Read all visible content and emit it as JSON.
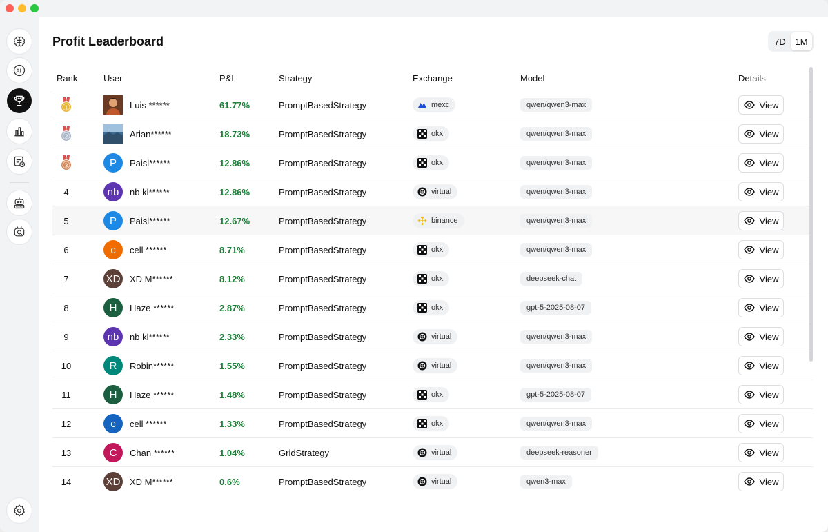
{
  "page": {
    "title": "Profit Leaderboard",
    "ranges": [
      {
        "label": "7D",
        "selected": false
      },
      {
        "label": "1M",
        "selected": true
      }
    ]
  },
  "sidebar": {
    "items": [
      {
        "name": "brain-icon",
        "active": false
      },
      {
        "name": "ai-icon",
        "active": false
      },
      {
        "name": "trophy-icon",
        "active": true
      },
      {
        "name": "bar-chart-icon",
        "active": false
      },
      {
        "name": "calendar-clock-icon",
        "active": false
      },
      {
        "name": "robot-news-icon",
        "active": false
      },
      {
        "name": "robot-search-icon",
        "active": false
      }
    ],
    "settings_icon": "gear-icon"
  },
  "table": {
    "headers": {
      "rank": "Rank",
      "user": "User",
      "pnl": "P&L",
      "strategy": "Strategy",
      "exchange": "Exchange",
      "model": "Model",
      "details": "Details"
    },
    "view_label": "View",
    "rows": [
      {
        "rank": "",
        "medal": "gold",
        "medal_num": "1",
        "avatar_type": "photo-man",
        "avatar_initials": "",
        "avatar_color": "#b05a2a",
        "user": "Luis ******",
        "pnl": "61.77%",
        "strategy": "PromptBasedStrategy",
        "exchange": "mexc",
        "model": "qwen/qwen3-max"
      },
      {
        "rank": "",
        "medal": "silver",
        "medal_num": "2",
        "avatar_type": "photo-landscape",
        "avatar_initials": "",
        "avatar_color": "#5f88b0",
        "user": "Arian******",
        "pnl": "18.73%",
        "strategy": "PromptBasedStrategy",
        "exchange": "okx",
        "model": "qwen/qwen3-max"
      },
      {
        "rank": "",
        "medal": "bronze",
        "medal_num": "3",
        "avatar_type": "letter",
        "avatar_initials": "P",
        "avatar_color": "#1e88e5",
        "user": "Paisl******",
        "pnl": "12.86%",
        "strategy": "PromptBasedStrategy",
        "exchange": "okx",
        "model": "qwen/qwen3-max"
      },
      {
        "rank": "4",
        "medal": "",
        "medal_num": "",
        "avatar_type": "letter",
        "avatar_initials": "nb",
        "avatar_color": "#5e35b1",
        "user": "nb kl******",
        "pnl": "12.86%",
        "strategy": "PromptBasedStrategy",
        "exchange": "virtual",
        "model": "qwen/qwen3-max"
      },
      {
        "rank": "5",
        "medal": "",
        "medal_num": "",
        "avatar_type": "letter",
        "avatar_initials": "P",
        "avatar_color": "#1e88e5",
        "user": "Paisl******",
        "pnl": "12.67%",
        "strategy": "PromptBasedStrategy",
        "exchange": "binance",
        "model": "qwen/qwen3-max",
        "highlight": true
      },
      {
        "rank": "6",
        "medal": "",
        "medal_num": "",
        "avatar_type": "letter",
        "avatar_initials": "c",
        "avatar_color": "#ef6c00",
        "user": "cell ******",
        "pnl": "8.71%",
        "strategy": "PromptBasedStrategy",
        "exchange": "okx",
        "model": "qwen/qwen3-max"
      },
      {
        "rank": "7",
        "medal": "",
        "medal_num": "",
        "avatar_type": "letter",
        "avatar_initials": "XD",
        "avatar_color": "#5d4037",
        "user": "XD M******",
        "pnl": "8.12%",
        "strategy": "PromptBasedStrategy",
        "exchange": "okx",
        "model": "deepseek-chat"
      },
      {
        "rank": "8",
        "medal": "",
        "medal_num": "",
        "avatar_type": "letter",
        "avatar_initials": "H",
        "avatar_color": "#1b5e40",
        "user": "Haze ******",
        "pnl": "2.87%",
        "strategy": "PromptBasedStrategy",
        "exchange": "okx",
        "model": "gpt-5-2025-08-07"
      },
      {
        "rank": "9",
        "medal": "",
        "medal_num": "",
        "avatar_type": "letter",
        "avatar_initials": "nb",
        "avatar_color": "#5e35b1",
        "user": "nb kl******",
        "pnl": "2.33%",
        "strategy": "PromptBasedStrategy",
        "exchange": "virtual",
        "model": "qwen/qwen3-max"
      },
      {
        "rank": "10",
        "medal": "",
        "medal_num": "",
        "avatar_type": "letter",
        "avatar_initials": "R",
        "avatar_color": "#00897b",
        "user": "Robin******",
        "pnl": "1.55%",
        "strategy": "PromptBasedStrategy",
        "exchange": "virtual",
        "model": "qwen/qwen3-max"
      },
      {
        "rank": "11",
        "medal": "",
        "medal_num": "",
        "avatar_type": "letter",
        "avatar_initials": "H",
        "avatar_color": "#1b5e40",
        "user": "Haze ******",
        "pnl": "1.48%",
        "strategy": "PromptBasedStrategy",
        "exchange": "okx",
        "model": "gpt-5-2025-08-07"
      },
      {
        "rank": "12",
        "medal": "",
        "medal_num": "",
        "avatar_type": "letter",
        "avatar_initials": "c",
        "avatar_color": "#1565c0",
        "user": "cell ******",
        "pnl": "1.33%",
        "strategy": "PromptBasedStrategy",
        "exchange": "okx",
        "model": "qwen/qwen3-max"
      },
      {
        "rank": "13",
        "medal": "",
        "medal_num": "",
        "avatar_type": "letter",
        "avatar_initials": "C",
        "avatar_color": "#c2185b",
        "user": "Chan ******",
        "pnl": "1.04%",
        "strategy": "GridStrategy",
        "exchange": "virtual",
        "model": "deepseek-reasoner"
      },
      {
        "rank": "14",
        "medal": "",
        "medal_num": "",
        "avatar_type": "letter",
        "avatar_initials": "XD",
        "avatar_color": "#5d4037",
        "user": "XD M******",
        "pnl": "0.6%",
        "strategy": "PromptBasedStrategy",
        "exchange": "virtual",
        "model": "qwen3-max"
      }
    ]
  },
  "colors": {
    "pnl_positive": "#1a7f37",
    "gold": "#e8b62c",
    "silver": "#a9b6c8",
    "bronze": "#d58a5c",
    "mexc": "#1c4fd8",
    "binance": "#f0b90b"
  }
}
